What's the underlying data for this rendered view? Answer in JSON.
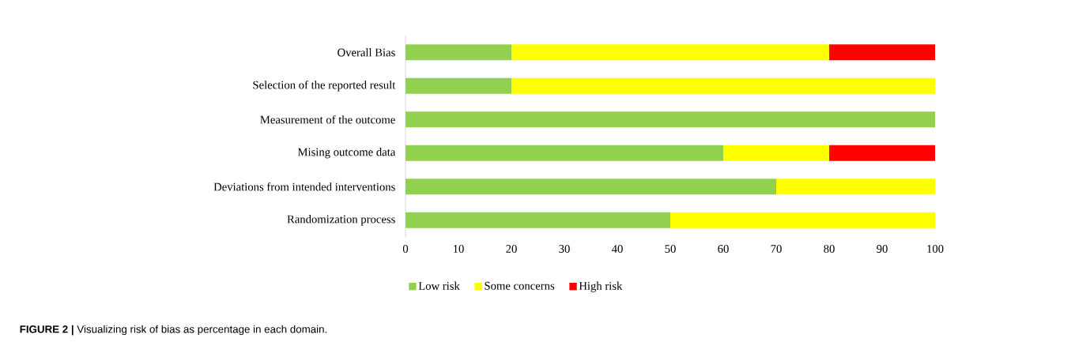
{
  "chart_data": {
    "type": "bar",
    "orientation": "horizontal",
    "stacked": true,
    "categories": [
      "Overall Bias",
      "Selection of the reported result",
      "Measurement of the outcome",
      "Mising outcome data",
      "Deviations from intended interventions",
      "Randomization process"
    ],
    "series": [
      {
        "name": "Low risk",
        "color": "#92d050",
        "values": [
          20,
          20,
          100,
          60,
          70,
          50
        ]
      },
      {
        "name": "Some concerns",
        "color": "#ffff00",
        "values": [
          60,
          80,
          0,
          20,
          30,
          50
        ]
      },
      {
        "name": "High risk",
        "color": "#ff0000",
        "values": [
          20,
          0,
          0,
          20,
          0,
          0
        ]
      }
    ],
    "xlim": [
      0,
      100
    ],
    "xticks": [
      0,
      10,
      20,
      30,
      40,
      50,
      60,
      70,
      80,
      90,
      100
    ],
    "legend": "bottom",
    "annotations": [
      "**FIGURE 2 |** Visualizing risk of bias as percentage in each domain."
    ]
  }
}
